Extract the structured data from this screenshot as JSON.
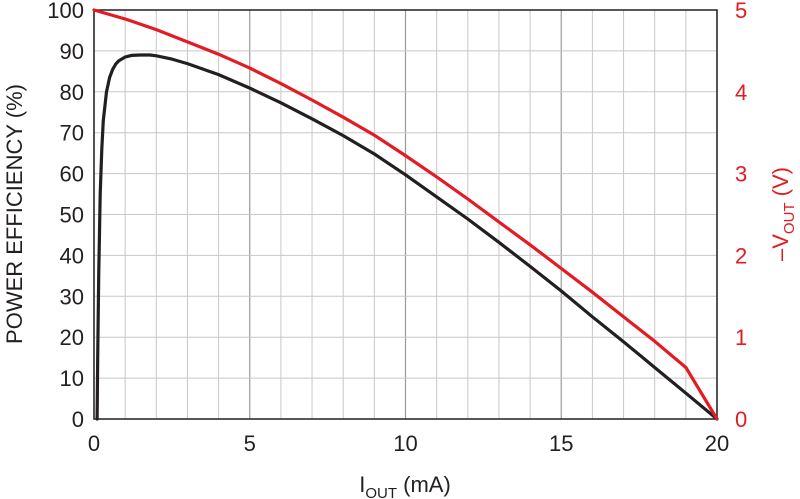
{
  "chart_data": {
    "type": "line",
    "xlabel": {
      "main": "I",
      "sub": "OUT",
      "unit": " (mA)"
    },
    "ylabel_left": "POWER EFFICIENCY (%)",
    "ylabel_right": {
      "prefix": "–V",
      "sub": "OUT",
      "unit": " (V)"
    },
    "xlim": [
      0,
      20
    ],
    "ylim_left": [
      0,
      100
    ],
    "ylim_right": [
      0,
      5
    ],
    "x_ticks": [
      "0",
      "5",
      "10",
      "15",
      "20"
    ],
    "y_left_ticks": [
      "0",
      "10",
      "20",
      "30",
      "40",
      "50",
      "60",
      "70",
      "80",
      "90",
      "100"
    ],
    "y_right_ticks": [
      "0",
      "1",
      "2",
      "3",
      "4",
      "5"
    ],
    "grid": true,
    "colors": {
      "efficiency": "#231f20",
      "vout": "#e31b23",
      "grid_major": "#9a9a9a",
      "grid_minor": "#c8c8c8"
    },
    "series": [
      {
        "axis": "left",
        "color": "#231f20",
        "x": [
          0.1,
          0.12,
          0.15,
          0.2,
          0.25,
          0.3,
          0.4,
          0.5,
          0.6,
          0.7,
          0.8,
          1.0,
          1.2,
          1.5,
          1.8,
          2.0,
          2.5,
          3,
          4,
          5,
          6,
          7,
          8,
          9,
          10,
          11,
          12,
          13,
          14,
          15,
          16,
          17,
          18,
          19,
          20
        ],
        "y": [
          0,
          15,
          35,
          55,
          66,
          73,
          80,
          83.5,
          85.5,
          86.8,
          87.6,
          88.5,
          88.9,
          89.0,
          89.0,
          88.8,
          88.0,
          86.9,
          84.2,
          80.9,
          77.3,
          73.4,
          69.3,
          64.8,
          59.7,
          54.3,
          48.9,
          43.2,
          37.3,
          31.3,
          25.0,
          18.9,
          12.6,
          6.3,
          0
        ]
      },
      {
        "axis": "right",
        "color": "#e31b23",
        "x": [
          0,
          1,
          2,
          3,
          4,
          5,
          6,
          7,
          8,
          9,
          10,
          11,
          12,
          13,
          14,
          15,
          16,
          17,
          18,
          19,
          20
        ],
        "y": [
          5.0,
          4.89,
          4.76,
          4.61,
          4.46,
          4.29,
          4.1,
          3.9,
          3.69,
          3.47,
          3.22,
          2.96,
          2.69,
          2.41,
          2.13,
          1.84,
          1.55,
          1.25,
          0.95,
          0.63,
          0.0
        ]
      }
    ]
  }
}
